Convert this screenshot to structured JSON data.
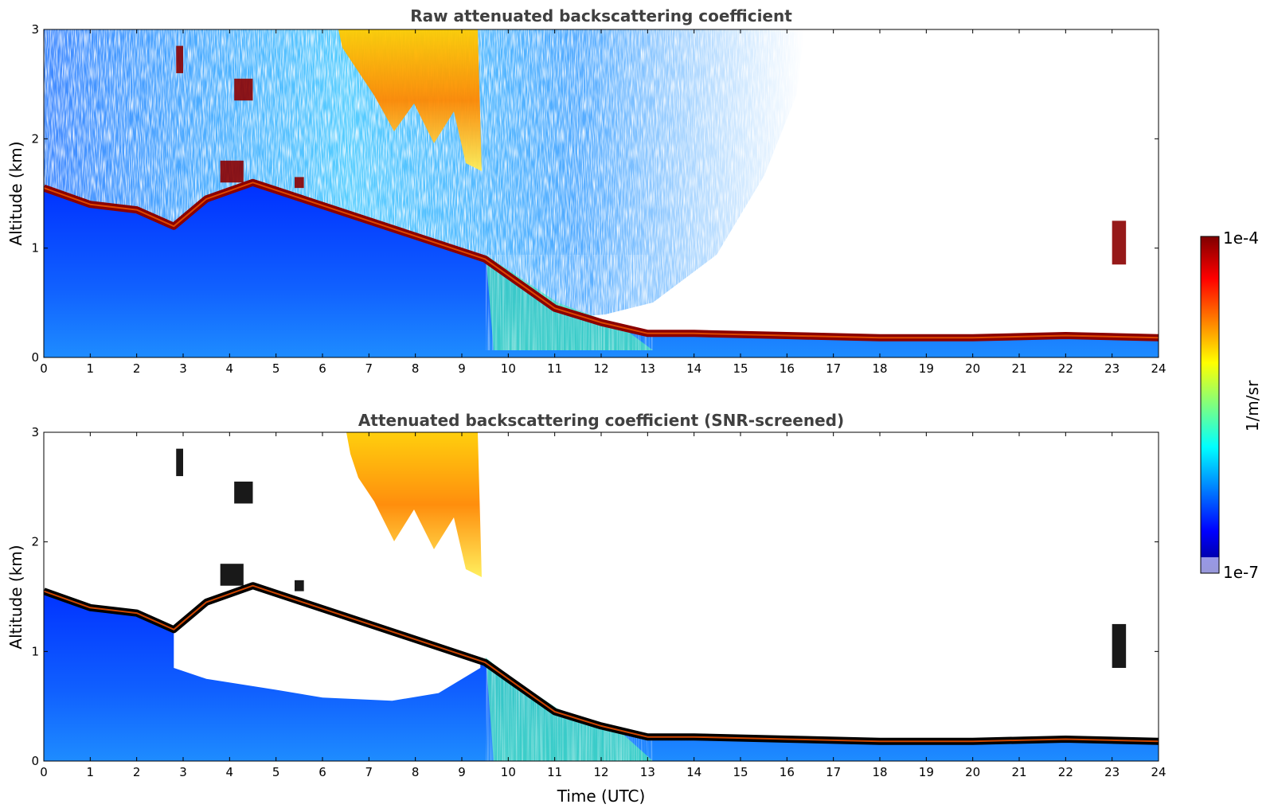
{
  "colors": {
    "jet_stops": [
      "#00007f",
      "#0000ff",
      "#007fff",
      "#00ffff",
      "#7fff7f",
      "#ffff00",
      "#ff7f00",
      "#ff0000",
      "#7f0000"
    ],
    "cloud_core_screened": "#000000",
    "background": "#ffffff"
  },
  "chart_data": [
    {
      "type": "heatmap",
      "title": "Raw attenuated backscattering coefficient",
      "xlabel": "",
      "ylabel": "Altitude (km)",
      "xlim": [
        0,
        24
      ],
      "ylim": [
        0,
        3
      ],
      "xticks": [
        "0",
        "1",
        "2",
        "3",
        "4",
        "5",
        "6",
        "7",
        "8",
        "9",
        "10",
        "11",
        "12",
        "13",
        "14",
        "15",
        "16",
        "17",
        "18",
        "19",
        "20",
        "21",
        "22",
        "23",
        "24"
      ],
      "yticks": [
        "0",
        "1",
        "2",
        "3"
      ],
      "boundary_layer_top_km": {
        "time_utc": [
          0,
          1,
          2,
          2.8,
          3.5,
          4.5,
          9.5,
          10,
          11,
          12,
          13,
          14,
          16,
          18,
          20,
          22,
          24
        ],
        "altitude_km": [
          1.55,
          1.4,
          1.35,
          1.2,
          1.45,
          1.6,
          0.9,
          0.75,
          0.45,
          0.32,
          0.22,
          0.22,
          0.2,
          0.18,
          0.18,
          0.2,
          0.18
        ]
      },
      "cloud_layers": [
        {
          "time_utc": [
            2.85,
            3.0
          ],
          "altitude_km": [
            2.6,
            2.85
          ]
        },
        {
          "time_utc": [
            4.1,
            4.5
          ],
          "altitude_km": [
            2.35,
            2.55
          ]
        },
        {
          "time_utc": [
            3.8,
            4.3
          ],
          "altitude_km": [
            1.6,
            1.8
          ]
        },
        {
          "time_utc": [
            5.4,
            5.6
          ],
          "altitude_km": [
            1.55,
            1.65
          ]
        },
        {
          "time_utc": [
            6.5,
            9.4
          ],
          "altitude_km": [
            1.8,
            3.0
          ]
        },
        {
          "time_utc": [
            23.0,
            23.3
          ],
          "altitude_km": [
            0.85,
            1.25
          ]
        }
      ],
      "colorbar": {
        "min_label": "1e-7",
        "max_label": "1e-4",
        "label": "1/m/sr",
        "scale": "log"
      }
    },
    {
      "type": "heatmap",
      "title": "Attenuated backscattering coefficient (SNR-screened)",
      "xlabel": "Time (UTC)",
      "ylabel": "Altitude (km)",
      "xlim": [
        0,
        24
      ],
      "ylim": [
        0,
        3
      ],
      "xticks": [
        "0",
        "1",
        "2",
        "3",
        "4",
        "5",
        "6",
        "7",
        "8",
        "9",
        "10",
        "11",
        "12",
        "13",
        "14",
        "15",
        "16",
        "17",
        "18",
        "19",
        "20",
        "21",
        "22",
        "23",
        "24"
      ],
      "yticks": [
        "0",
        "1",
        "2",
        "3"
      ],
      "screened_gap_km": {
        "time_utc": [
          2.8,
          3.5,
          5,
          6,
          7.5,
          8.5,
          9.4
        ],
        "altitude_km": [
          0.85,
          0.75,
          0.65,
          0.58,
          0.55,
          0.62,
          0.85
        ]
      }
    }
  ]
}
